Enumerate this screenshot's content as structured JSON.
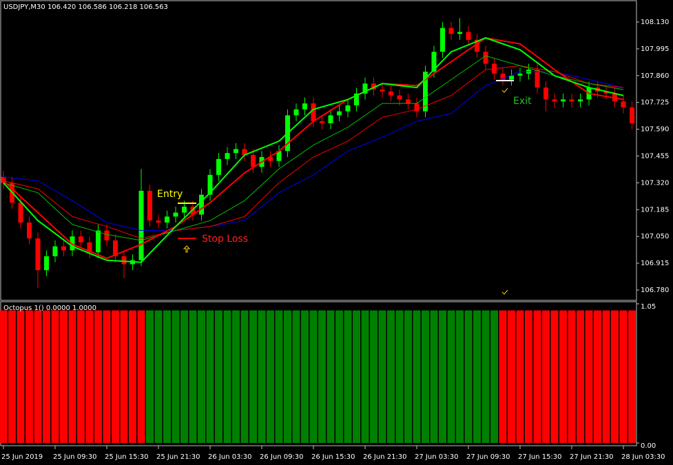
{
  "chart_data": [
    {
      "type": "candlestick",
      "title": "USDJPY,M30 106.420 106.586 106.218 106.563",
      "up_color": "#00ff00",
      "down_color": "#ff0000",
      "open": [
        107.35,
        107.32,
        107.22,
        107.12,
        107.04,
        106.88,
        106.95,
        107.0,
        106.98,
        107.05,
        107.02,
        106.97,
        107.08,
        107.03,
        106.95,
        106.91,
        106.93,
        107.28,
        107.13,
        107.12,
        107.15,
        107.17,
        107.2,
        107.16,
        107.26,
        107.36,
        107.44,
        107.47,
        107.49,
        107.46,
        107.4,
        107.45,
        107.43,
        107.48,
        107.66,
        107.69,
        107.72,
        107.63,
        107.62,
        107.66,
        107.68,
        107.71,
        107.77,
        107.82,
        107.79,
        107.78,
        107.76,
        107.74,
        107.72,
        107.68,
        107.88,
        107.98,
        108.1,
        108.07,
        108.08,
        108.04,
        107.98,
        107.92,
        107.87,
        107.84,
        107.86,
        107.87,
        107.89,
        107.8,
        107.74,
        107.73,
        107.74,
        107.73,
        107.74,
        107.8,
        107.78,
        107.77,
        107.73,
        107.7
      ],
      "high": [
        107.38,
        107.35,
        107.25,
        107.15,
        107.07,
        106.98,
        107.03,
        107.03,
        107.08,
        107.08,
        107.05,
        107.11,
        107.11,
        107.06,
        106.98,
        106.96,
        107.39,
        107.31,
        107.16,
        107.18,
        107.2,
        107.23,
        107.23,
        107.29,
        107.39,
        107.47,
        107.5,
        107.52,
        107.52,
        107.49,
        107.48,
        107.48,
        107.51,
        107.69,
        107.72,
        107.75,
        107.75,
        107.66,
        107.69,
        107.71,
        107.74,
        107.8,
        107.85,
        107.85,
        107.82,
        107.81,
        107.79,
        107.77,
        107.75,
        107.91,
        108.01,
        108.13,
        108.13,
        108.15,
        108.11,
        108.07,
        108.01,
        107.95,
        107.9,
        107.89,
        107.9,
        107.92,
        107.92,
        107.83,
        107.77,
        107.77,
        107.77,
        107.77,
        107.83,
        107.83,
        107.81,
        107.8,
        107.76,
        107.73
      ],
      "low": [
        107.29,
        107.19,
        107.09,
        107.01,
        106.79,
        106.85,
        106.92,
        106.95,
        106.95,
        106.99,
        106.94,
        106.94,
        107.0,
        106.92,
        106.84,
        106.88,
        106.9,
        107.1,
        107.09,
        107.09,
        107.12,
        107.14,
        107.13,
        107.13,
        107.23,
        107.33,
        107.41,
        107.44,
        107.43,
        107.37,
        107.37,
        107.4,
        107.4,
        107.45,
        107.63,
        107.66,
        107.6,
        107.59,
        107.59,
        107.63,
        107.65,
        107.68,
        107.74,
        107.76,
        107.75,
        107.73,
        107.71,
        107.69,
        107.65,
        107.65,
        107.85,
        107.95,
        108.04,
        108.04,
        108.01,
        107.95,
        107.89,
        107.84,
        107.81,
        107.81,
        107.83,
        107.84,
        107.77,
        107.68,
        107.7,
        107.7,
        107.7,
        107.7,
        107.71,
        107.75,
        107.74,
        107.7,
        107.67,
        107.59
      ],
      "close": [
        107.32,
        107.22,
        107.12,
        107.04,
        106.88,
        106.95,
        107.0,
        106.98,
        107.05,
        107.02,
        106.97,
        107.08,
        107.03,
        106.95,
        106.91,
        106.93,
        107.28,
        107.13,
        107.12,
        107.15,
        107.17,
        107.2,
        107.16,
        107.26,
        107.36,
        107.44,
        107.47,
        107.49,
        107.46,
        107.4,
        107.45,
        107.43,
        107.48,
        107.66,
        107.69,
        107.72,
        107.63,
        107.62,
        107.66,
        107.68,
        107.71,
        107.77,
        107.82,
        107.79,
        107.78,
        107.76,
        107.74,
        107.72,
        107.68,
        107.88,
        107.98,
        108.1,
        108.07,
        108.08,
        108.04,
        107.98,
        107.92,
        107.87,
        107.84,
        107.86,
        107.87,
        107.89,
        107.8,
        107.74,
        107.73,
        107.74,
        107.73,
        107.74,
        107.8,
        107.78,
        107.77,
        107.73,
        107.7,
        107.62
      ],
      "ma_x": [
        0,
        4,
        8,
        12,
        16,
        20,
        24,
        28,
        32,
        36,
        40,
        44,
        48,
        52,
        56,
        60,
        64,
        68,
        72
      ],
      "lines": [
        {
          "color": "#0000ff",
          "width": 1,
          "values": [
            107.35,
            107.33,
            107.23,
            107.12,
            107.08,
            107.08,
            107.1,
            107.13,
            107.27,
            107.36,
            107.48,
            107.55,
            107.63,
            107.67,
            107.81,
            107.88,
            107.88,
            107.84,
            107.8
          ]
        },
        {
          "color": "#ff0000",
          "width": 1,
          "values": [
            107.33,
            107.29,
            107.15,
            107.1,
            107.04,
            107.08,
            107.1,
            107.15,
            107.32,
            107.45,
            107.53,
            107.65,
            107.69,
            107.76,
            107.89,
            107.91,
            107.88,
            107.82,
            107.8
          ]
        },
        {
          "color": "#00c000",
          "width": 1,
          "values": [
            107.32,
            107.27,
            107.11,
            107.06,
            107.03,
            107.08,
            107.13,
            107.23,
            107.39,
            107.51,
            107.6,
            107.72,
            107.72,
            107.84,
            107.96,
            107.91,
            107.86,
            107.82,
            107.79
          ]
        },
        {
          "color": "#ff0000",
          "width": 2,
          "values": [
            107.33,
            107.17,
            107.01,
            106.94,
            107.01,
            107.1,
            107.22,
            107.37,
            107.48,
            107.63,
            107.74,
            107.82,
            107.81,
            107.93,
            108.05,
            108.02,
            107.89,
            107.77,
            107.74
          ]
        },
        {
          "color": "#00ff00",
          "width": 2,
          "values": [
            107.32,
            107.13,
            107.0,
            106.93,
            106.92,
            107.1,
            107.27,
            107.46,
            107.53,
            107.69,
            107.74,
            107.82,
            107.8,
            107.98,
            108.05,
            107.99,
            107.86,
            107.8,
            107.76
          ]
        }
      ],
      "annotations": [
        "Entry",
        "Stop Loss",
        "Exit"
      ],
      "xlim": [
        -0.32,
        73.52
      ],
      "xticks": [
        {
          "value": 0,
          "label": "25 Jun 2019"
        },
        {
          "value": 6,
          "label": "25 Jun 09:30"
        },
        {
          "value": 12,
          "label": "25 Jun 15:30"
        },
        {
          "value": 18,
          "label": "25 Jun 21:30"
        },
        {
          "value": 24,
          "label": "26 Jun 03:30"
        },
        {
          "value": 30,
          "label": "26 Jun 09:30"
        },
        {
          "value": 36,
          "label": "26 Jun 15:30"
        },
        {
          "value": 42,
          "label": "26 Jun 21:30"
        },
        {
          "value": 48,
          "label": "27 Jun 03:30"
        },
        {
          "value": 54,
          "label": "27 Jun 09:30"
        },
        {
          "value": 60,
          "label": "27 Jun 15:30"
        },
        {
          "value": 66,
          "label": "27 Jun 21:30"
        },
        {
          "value": 72,
          "label": "28 Jun 03:30"
        }
      ],
      "ylim": [
        106.728,
        108.234
      ],
      "yticks": [
        {
          "value": 106.78,
          "label": "106.780"
        },
        106.915,
        {
          "value": 107.05,
          "label": "107.050"
        },
        107.185,
        {
          "value": 107.32,
          "label": "107.320"
        },
        107.455,
        {
          "value": 107.59,
          "label": "107.590"
        },
        107.725,
        {
          "value": 107.86,
          "label": "107.860"
        },
        107.995,
        {
          "value": 108.13,
          "label": "108.130"
        }
      ]
    },
    {
      "type": "bar",
      "title": "Octopus 1() 0.0000 1.0000",
      "values": [
        1,
        1,
        1,
        1,
        1,
        1,
        1,
        1,
        1,
        1,
        1,
        1,
        1,
        1,
        1,
        1,
        1,
        1,
        1,
        1,
        1,
        1,
        1,
        1,
        1,
        1,
        1,
        1,
        1,
        1,
        1,
        1,
        1,
        1,
        1,
        1,
        1,
        1,
        1,
        1,
        1,
        1,
        1,
        1,
        1,
        1,
        1,
        1,
        1,
        1,
        1,
        1,
        1,
        1,
        1,
        1,
        1,
        1,
        1,
        1,
        1,
        1,
        1,
        1,
        1,
        1,
        1,
        1,
        1,
        1,
        1,
        1,
        1,
        1
      ],
      "colors": [
        "#ff0000",
        "#ff0000",
        "#ff0000",
        "#ff0000",
        "#ff0000",
        "#ff0000",
        "#ff0000",
        "#ff0000",
        "#ff0000",
        "#ff0000",
        "#ff0000",
        "#ff0000",
        "#ff0000",
        "#ff0000",
        "#ff0000",
        "#ff0000",
        "#ff0000",
        "#008000",
        "#008000",
        "#008000",
        "#008000",
        "#008000",
        "#008000",
        "#008000",
        "#008000",
        "#008000",
        "#008000",
        "#008000",
        "#008000",
        "#008000",
        "#008000",
        "#008000",
        "#008000",
        "#008000",
        "#008000",
        "#008000",
        "#008000",
        "#008000",
        "#008000",
        "#008000",
        "#008000",
        "#008000",
        "#008000",
        "#008000",
        "#008000",
        "#008000",
        "#008000",
        "#008000",
        "#008000",
        "#008000",
        "#008000",
        "#008000",
        "#008000",
        "#008000",
        "#008000",
        "#008000",
        "#008000",
        "#008000",
        "#ff0000",
        "#ff0000",
        "#ff0000",
        "#ff0000",
        "#ff0000",
        "#ff0000",
        "#ff0000",
        "#ff0000",
        "#ff0000",
        "#ff0000",
        "#ff0000",
        "#ff0000",
        "#ff0000",
        "#ff0000",
        "#ff0000",
        "#ff0000"
      ],
      "ylim": [
        0,
        1.05
      ],
      "yticks": [
        1.05,
        {
          "value": 0,
          "label": "0.00"
        }
      ]
    }
  ]
}
